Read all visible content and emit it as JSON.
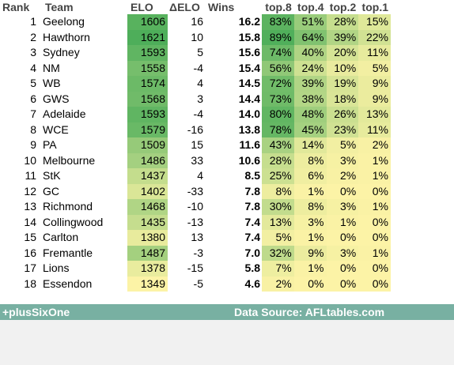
{
  "header": {
    "rank": "Rank",
    "team": "Team",
    "elo": "ELO",
    "delta_elo": "ΔELO",
    "wins": "Wins",
    "top8": "top.8",
    "top4": "top.4",
    "top2": "top.2",
    "top1": "top.1"
  },
  "rows": [
    {
      "rank": "1",
      "team": "Geelong",
      "elo": "1606",
      "delo": "16",
      "wins": "16.2",
      "top8": "83%",
      "top4": "51%",
      "top2": "28%",
      "top1": "15%"
    },
    {
      "rank": "2",
      "team": "Hawthorn",
      "elo": "1621",
      "delo": "10",
      "wins": "15.8",
      "top8": "89%",
      "top4": "64%",
      "top2": "39%",
      "top1": "22%"
    },
    {
      "rank": "3",
      "team": "Sydney",
      "elo": "1593",
      "delo": "5",
      "wins": "15.6",
      "top8": "74%",
      "top4": "40%",
      "top2": "20%",
      "top1": "11%"
    },
    {
      "rank": "4",
      "team": "NM",
      "elo": "1558",
      "delo": "-4",
      "wins": "15.4",
      "top8": "56%",
      "top4": "24%",
      "top2": "10%",
      "top1": "5%"
    },
    {
      "rank": "5",
      "team": "WB",
      "elo": "1574",
      "delo": "4",
      "wins": "14.5",
      "top8": "72%",
      "top4": "39%",
      "top2": "19%",
      "top1": "9%"
    },
    {
      "rank": "6",
      "team": "GWS",
      "elo": "1568",
      "delo": "3",
      "wins": "14.4",
      "top8": "73%",
      "top4": "38%",
      "top2": "18%",
      "top1": "9%"
    },
    {
      "rank": "7",
      "team": "Adelaide",
      "elo": "1593",
      "delo": "-4",
      "wins": "14.0",
      "top8": "80%",
      "top4": "48%",
      "top2": "26%",
      "top1": "13%"
    },
    {
      "rank": "8",
      "team": "WCE",
      "elo": "1579",
      "delo": "-16",
      "wins": "13.8",
      "top8": "78%",
      "top4": "45%",
      "top2": "23%",
      "top1": "11%"
    },
    {
      "rank": "9",
      "team": "PA",
      "elo": "1509",
      "delo": "15",
      "wins": "11.6",
      "top8": "43%",
      "top4": "14%",
      "top2": "5%",
      "top1": "2%"
    },
    {
      "rank": "10",
      "team": "Melbourne",
      "elo": "1486",
      "delo": "33",
      "wins": "10.6",
      "top8": "28%",
      "top4": "8%",
      "top2": "3%",
      "top1": "1%"
    },
    {
      "rank": "11",
      "team": "StK",
      "elo": "1437",
      "delo": "4",
      "wins": "8.5",
      "top8": "25%",
      "top4": "6%",
      "top2": "2%",
      "top1": "1%"
    },
    {
      "rank": "12",
      "team": "GC",
      "elo": "1402",
      "delo": "-33",
      "wins": "7.8",
      "top8": "8%",
      "top4": "1%",
      "top2": "0%",
      "top1": "0%"
    },
    {
      "rank": "13",
      "team": "Richmond",
      "elo": "1468",
      "delo": "-10",
      "wins": "7.8",
      "top8": "30%",
      "top4": "8%",
      "top2": "3%",
      "top1": "1%"
    },
    {
      "rank": "14",
      "team": "Collingwood",
      "elo": "1435",
      "delo": "-13",
      "wins": "7.4",
      "top8": "13%",
      "top4": "3%",
      "top2": "1%",
      "top1": "0%"
    },
    {
      "rank": "15",
      "team": "Carlton",
      "elo": "1380",
      "delo": "13",
      "wins": "7.4",
      "top8": "5%",
      "top4": "1%",
      "top2": "0%",
      "top1": "0%"
    },
    {
      "rank": "16",
      "team": "Fremantle",
      "elo": "1487",
      "delo": "-3",
      "wins": "7.0",
      "top8": "32%",
      "top4": "9%",
      "top2": "3%",
      "top1": "1%"
    },
    {
      "rank": "17",
      "team": "Lions",
      "elo": "1378",
      "delo": "-15",
      "wins": "5.8",
      "top8": "7%",
      "top4": "1%",
      "top2": "0%",
      "top1": "0%"
    },
    {
      "rank": "18",
      "team": "Essendon",
      "elo": "1349",
      "delo": "-5",
      "wins": "4.6",
      "top8": "2%",
      "top4": "0%",
      "top2": "0%",
      "top1": "0%"
    }
  ],
  "footer": {
    "left": "+plusSixOne",
    "right": "Data Source: AFLtables.com"
  },
  "colors": {
    "heat_low": "#fcf3a6",
    "heat_high": "#4eae5a",
    "footer_bg": "#78b0a2",
    "footer_text": "#ffffff"
  }
}
